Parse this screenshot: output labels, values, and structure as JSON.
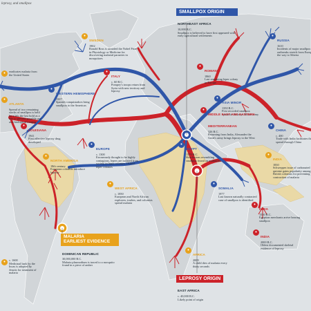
{
  "header": {
    "subtitle": "leprosy, and smallpox"
  },
  "colors": {
    "ocean": "#dfe3e6",
    "land": "#cfd3d6",
    "endemic": "#ead9a6",
    "smallpox": "#2f56a8",
    "malaria": "#e8a21c",
    "leprosy": "#cc2229"
  },
  "origins": {
    "smallpox": {
      "title": "SMALLPOX ORIGIN",
      "region": "NORTHEAST AFRICA",
      "date": "10,000 B.C.",
      "text": "Smallpox is believed to have first appeared with early agricultural settlements"
    },
    "malaria": {
      "title": "MALARIA",
      "title2": "EARLIEST EVIDENCE",
      "region": "DOMINICAN REPUBLIC",
      "date": "30,000,000 B.C.",
      "text": "Malaria plasmodium is traced to a mosquito found in a piece of amber"
    },
    "leprosy": {
      "title": "LEPROSY ORIGIN",
      "region": "EAST AFRICA",
      "date": "c. 40,000 B.C.",
      "text": "Likely point of origin"
    }
  },
  "events": [
    {
      "id": "nobel",
      "icon": "malaria",
      "title": "SWEDEN",
      "date": "1902",
      "text": "Ronald Ross is awarded the Nobel Prize in Physiology or Medicine for discovering malarial parasites in mosquitoes"
    },
    {
      "id": "russia",
      "icon": "smallpox",
      "title": "RUSSIA",
      "date": "1610",
      "text": "Incidents of major smallpox outbreaks stretch from Europe all the way to Siberia"
    },
    {
      "id": "west-hemisphere",
      "icon": "smallpox",
      "title": "WESTERN HEMISPHERE",
      "date": "1507",
      "text": "Spanish conquistadors bring smallpox to the Americas"
    },
    {
      "id": "italy",
      "icon": "leprosy",
      "title": "ITALY",
      "date": "c. 60 B.C.",
      "text": "Pompey's troops return from Syria with new territory and leprosy"
    },
    {
      "id": "romania",
      "icon": "leprosy",
      "title": "ROMANIA",
      "date": "1860",
      "text": "Last remaining leper colony in Europe"
    },
    {
      "id": "asia-minor",
      "icon": "smallpox",
      "title": "ASIA MINOR",
      "date": "1350 B.C.",
      "text": "First recorded smallpox epidemic destroys Hittite army"
    },
    {
      "id": "louisiana",
      "icon": "leprosy",
      "title": "LOUISIANA",
      "date": "1941",
      "text": "First effective leprosy drug developed"
    },
    {
      "id": "middle-east",
      "icon": "leprosy",
      "title": "MIDDLE EAST AND EASTERN MEDITERRANEAN",
      "date": "326 B.C.",
      "text": "Returning from India, Alexander the Great's army brings leprosy to the West"
    },
    {
      "id": "china",
      "icon": "smallpox",
      "title": "CHINA",
      "date": "c. 400",
      "text": "Trade with India facilitates the spread through China"
    },
    {
      "id": "egypt",
      "icon": "smallpox",
      "title": "EGYPT",
      "date": "1570 B.C.",
      "text": "Skin lesions resembling smallpox found on mummies"
    },
    {
      "id": "europe",
      "icon": "smallpox",
      "title": "EUROPE",
      "date": "c. 1300",
      "text": "Erroneously thought to be highly contagious, lepers are isolated from society in leper colonies. 19,000 leper colonies"
    },
    {
      "id": "north-america",
      "icon": "malaria",
      "title": "NORTH AMERICA",
      "date": "18th century",
      "text": "European colonists introduce leprosy"
    },
    {
      "id": "somalia",
      "icon": "smallpox",
      "title": "SOMALIA",
      "date": "1977",
      "text": "Last known naturally contracted case of smallpox is identified"
    },
    {
      "id": "west-africa",
      "icon": "malaria",
      "title": "WEST AFRICA",
      "date": "c. 1850",
      "text": "European and North African explorers, traders, and colonists spread malaria"
    },
    {
      "id": "india-1830",
      "icon": "malaria",
      "title": "INDIA",
      "date": "1830",
      "text": "Schweppes issue of carbonated quinine gains popularity among British colonists for preventing contraction of malaria"
    },
    {
      "id": "india-1550",
      "icon": "leprosy",
      "title": "INDIA",
      "date": "1550 B.C.",
      "text": "Egyptian merchants arrive bearing smallpox"
    },
    {
      "id": "india-oldest",
      "icon": "leprosy",
      "title": "INDIA",
      "date": "2000 B.C.",
      "text": "Oldest documented skeletal evidence of leprosy"
    },
    {
      "id": "africa-child",
      "icon": "malaria",
      "title": "AFRICA",
      "date": "2009",
      "text": "A child dies of malaria every thirty seconds"
    },
    {
      "id": "usa",
      "icon": "malaria",
      "title": "",
      "date": "",
      "text": "eradicates malaria from the United States"
    },
    {
      "id": "atlanta",
      "icon": "malaria",
      "title": "ATLANTA",
      "date": "",
      "text": "Spread of two remaining stocks of smallpox is held by a lab; the last hold as a key to prevent possible use as a biological weapon"
    },
    {
      "id": "amazon",
      "icon": "malaria",
      "title": "",
      "date": "c. 1600",
      "text": "Medicinal bark by the Incas is adopted by Jesuits for treatment of malaria"
    }
  ]
}
